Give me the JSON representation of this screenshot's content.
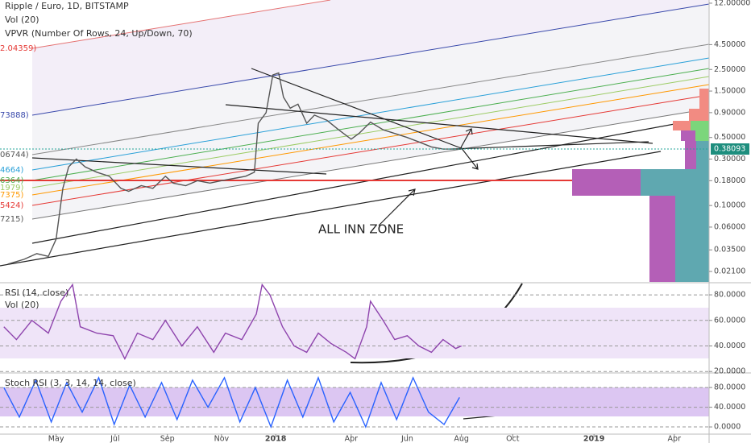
{
  "header": {
    "title": "Ripple / Euro, 1D, BITSTAMP",
    "indicators": [
      "Vol (20)",
      "VPVR (Number Of Rows, 24, Up/Down, 70)"
    ]
  },
  "annotation": "ALL INN ZONE",
  "fib_labels": [
    "2.04359)",
    "73888)",
    "06744)",
    "4664)",
    "6364)",
    "1979)",
    "7375)",
    "5424)",
    "7215)"
  ],
  "last_price": 0.38093,
  "chart_data": [
    {
      "type": "line",
      "log": true,
      "color": "#555555",
      "xlim": [
        0,
        733
      ],
      "xticks": [
        {
          "value": 58,
          "label": "May"
        },
        {
          "value": 119,
          "label": "Jul"
        },
        {
          "value": 173,
          "label": "Sep"
        },
        {
          "value": 229,
          "label": "Nov"
        },
        {
          "value": 285,
          "label": "2018"
        },
        {
          "value": 363,
          "label": "Apr"
        },
        {
          "value": 421,
          "label": "Jun"
        },
        {
          "value": 477,
          "label": "Aug"
        },
        {
          "value": 530,
          "label": "Oct"
        },
        {
          "value": 614,
          "label": "2019"
        },
        {
          "value": 697,
          "label": "Apr"
        }
      ],
      "ylim": [
        0.0164,
        12.94
      ],
      "yticks": [
        {
          "value": 12,
          "label": "12.00000"
        },
        {
          "value": 4.5,
          "label": "4.50000"
        },
        {
          "value": 2.5,
          "label": "2.50000"
        },
        {
          "value": 1.5,
          "label": "1.50000"
        },
        {
          "value": 0.9,
          "label": "0.90000"
        },
        {
          "value": 0.5,
          "label": "0.50000"
        },
        {
          "value": 0.3,
          "label": "0.30000"
        },
        {
          "value": 0.18,
          "label": "0.18000"
        },
        {
          "value": 0.1,
          "label": "0.10000"
        },
        {
          "value": 0.06,
          "label": "0.06000"
        },
        {
          "value": 0.035,
          "label": "0.03500"
        },
        {
          "value": 0.021,
          "label": "0.02100"
        }
      ],
      "x": [
        8,
        25,
        38,
        50,
        58,
        65,
        71,
        79,
        88,
        100,
        113,
        125,
        133,
        146,
        158,
        171,
        179,
        192,
        204,
        217,
        229,
        242,
        254,
        263,
        267,
        275,
        282,
        288,
        293,
        300,
        308,
        317,
        325,
        338,
        350,
        363,
        371,
        383,
        396,
        408,
        421,
        433,
        446,
        458,
        471,
        477
      ],
      "values": [
        0.025,
        0.028,
        0.032,
        0.03,
        0.045,
        0.15,
        0.25,
        0.3,
        0.25,
        0.22,
        0.2,
        0.15,
        0.14,
        0.16,
        0.15,
        0.2,
        0.17,
        0.16,
        0.18,
        0.17,
        0.18,
        0.19,
        0.2,
        0.22,
        0.7,
        0.9,
        2.2,
        2.3,
        1.3,
        1.0,
        1.1,
        0.7,
        0.85,
        0.75,
        0.6,
        0.48,
        0.55,
        0.72,
        0.6,
        0.55,
        0.5,
        0.45,
        0.4,
        0.38,
        0.38,
        0.38
      ]
    },
    {
      "type": "line",
      "title": "RSI (14, close)",
      "subtitle": "Vol (20)",
      "color": "#8e44ad",
      "xlim": [
        0,
        733
      ],
      "ylim": [
        19.5,
        89.5
      ],
      "yticks": [
        {
          "value": 80,
          "label": "80.0000"
        },
        {
          "value": 60,
          "label": "60.0000"
        },
        {
          "value": 40,
          "label": "40.0000"
        },
        {
          "value": 20,
          "label": "20.0000"
        }
      ],
      "x": [
        4,
        17,
        33,
        50,
        63,
        75,
        83,
        100,
        117,
        129,
        142,
        158,
        171,
        188,
        204,
        221,
        233,
        250,
        265,
        271,
        279,
        292,
        304,
        317,
        329,
        342,
        358,
        367,
        379,
        383,
        396,
        408,
        421,
        433,
        446,
        458,
        471,
        477
      ],
      "values": [
        55,
        45,
        60,
        50,
        75,
        88,
        55,
        50,
        48,
        30,
        50,
        45,
        60,
        40,
        55,
        35,
        50,
        45,
        65,
        88,
        80,
        55,
        40,
        35,
        50,
        42,
        35,
        30,
        55,
        75,
        60,
        45,
        48,
        40,
        35,
        45,
        38,
        40
      ]
    },
    {
      "type": "line",
      "title": "Stoch RSI (3, 3, 14, 14, close)",
      "color": "#2962ff",
      "xlim": [
        0,
        733
      ],
      "ylim": [
        -13,
        108
      ],
      "yticks": [
        {
          "value": 80,
          "label": "80.0000"
        },
        {
          "value": 40,
          "label": "40.0000"
        },
        {
          "value": 0,
          "label": "0.0000"
        }
      ],
      "x": [
        4,
        20,
        37,
        53,
        69,
        85,
        102,
        118,
        134,
        150,
        167,
        183,
        199,
        215,
        232,
        248,
        264,
        280,
        297,
        313,
        329,
        345,
        362,
        378,
        394,
        410,
        427,
        443,
        459,
        475
      ],
      "values": [
        80,
        20,
        95,
        10,
        90,
        30,
        100,
        5,
        85,
        20,
        90,
        15,
        95,
        40,
        100,
        10,
        80,
        0,
        95,
        20,
        100,
        10,
        70,
        0,
        90,
        15,
        100,
        30,
        5,
        60
      ]
    }
  ]
}
